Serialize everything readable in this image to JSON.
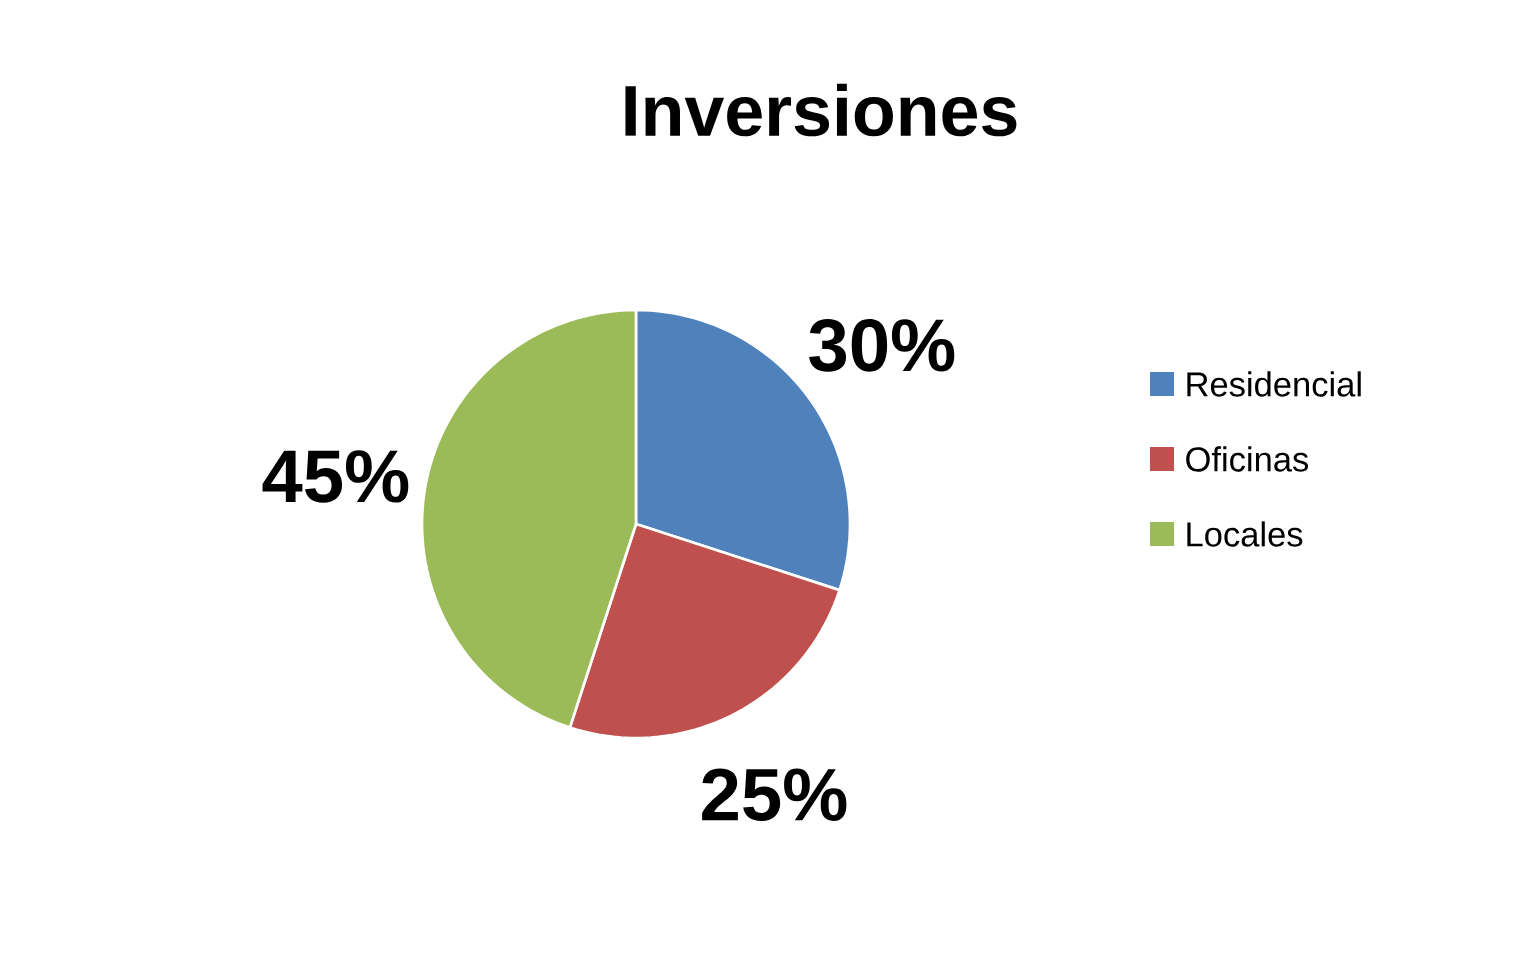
{
  "chart_data": {
    "type": "pie",
    "title": "Inversiones",
    "categories": [
      "Residencial",
      "Oficinas",
      "Locales"
    ],
    "values": [
      30,
      25,
      45
    ],
    "value_labels": [
      "30%",
      "25%",
      "45%"
    ],
    "colors": [
      "#4f81bd",
      "#c0504d",
      "#9bbb59"
    ],
    "legend": "right"
  }
}
